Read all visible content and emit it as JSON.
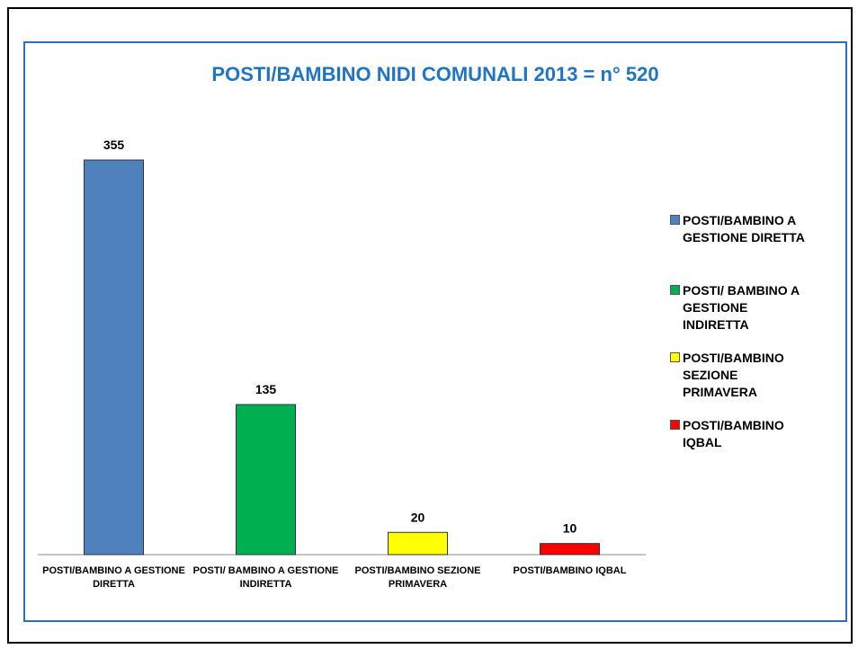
{
  "chart_data": {
    "type": "bar",
    "title": "POSTI/BAMBINO NIDI COMUNALI 2013 = n° 520",
    "categories": [
      "POSTI/BAMBINO A GESTIONE DIRETTA",
      "POSTI/ BAMBINO A GESTIONE INDIRETTA",
      "POSTI/BAMBINO SEZIONE PRIMAVERA",
      "POSTI/BAMBINO IQBAL"
    ],
    "values": [
      355,
      135,
      20,
      10
    ],
    "colors": [
      "#4f81bd",
      "#00b050",
      "#ffff00",
      "#ff0000"
    ],
    "legend": "right"
  }
}
